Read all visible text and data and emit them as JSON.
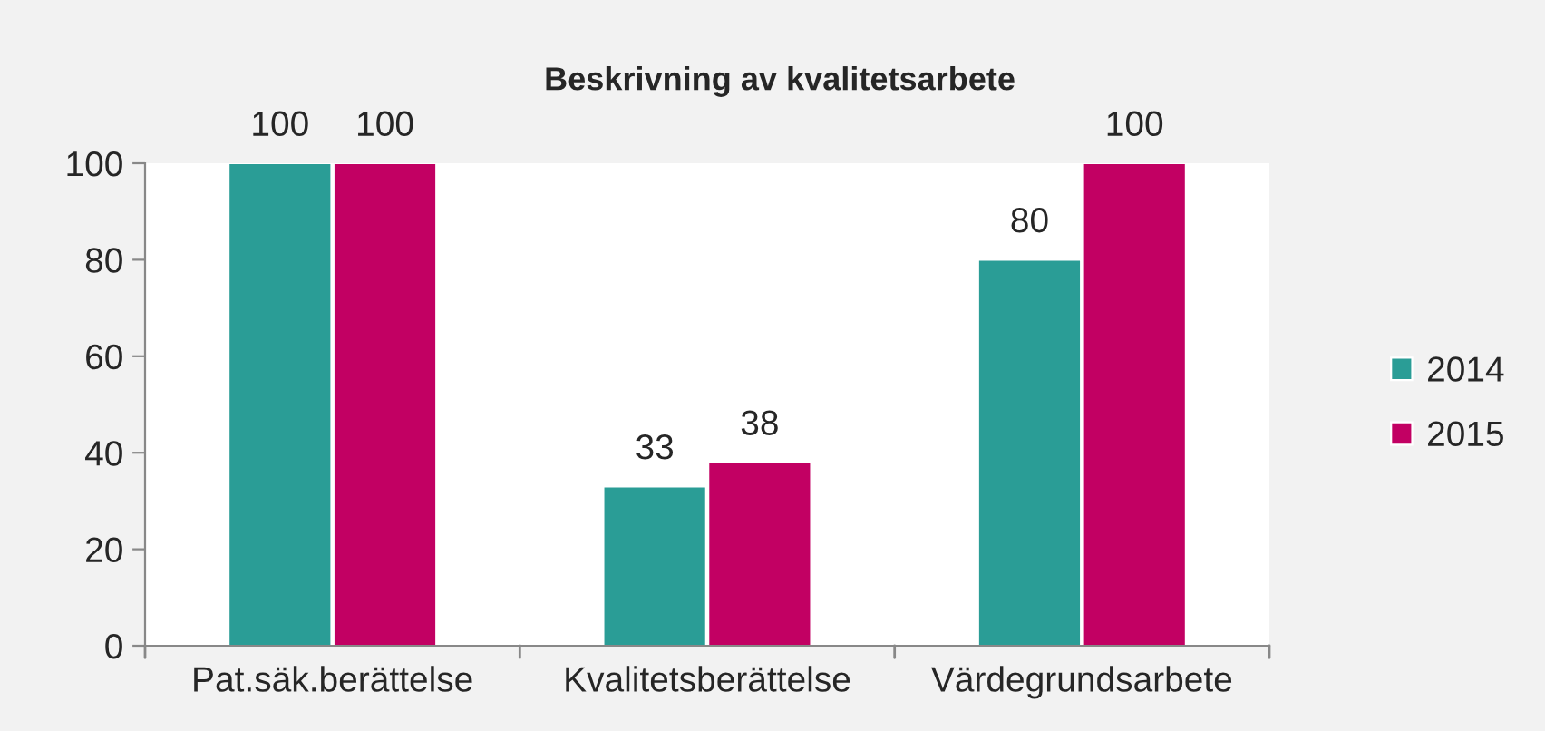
{
  "chart_data": {
    "type": "bar",
    "title": "Beskrivning av kvalitetsarbete",
    "categories": [
      "Pat.säk.berättelse",
      "Kvalitetsberättelse",
      "Värdegrundsarbete"
    ],
    "series": [
      {
        "name": "2014",
        "color": "#2a9d96",
        "values": [
          100,
          33,
          80
        ]
      },
      {
        "name": "2015",
        "color": "#c20063",
        "values": [
          100,
          38,
          100
        ]
      }
    ],
    "ylim": [
      0,
      100
    ],
    "yticks": [
      0,
      20,
      40,
      60,
      80,
      100
    ],
    "grid": false,
    "legend": "right",
    "data_labels": true
  }
}
